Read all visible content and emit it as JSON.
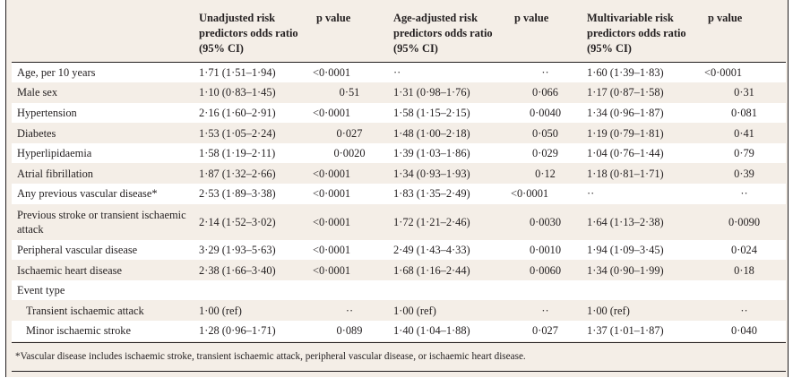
{
  "headers": {
    "col1": "",
    "col2": "Unadjusted risk predictors odds ratio (95% CI)",
    "col3": "p value",
    "col4": "Age-adjusted risk predictors odds ratio (95% CI)",
    "col5": "p value",
    "col6": "Multivariable risk predictors odds ratio (95% CI)",
    "col7": "p value"
  },
  "rows": [
    {
      "label": "Age, per 10 years",
      "u_or": "1·71 (1·51–1·94)",
      "u_p": "<0·0001",
      "a_or": "··",
      "a_p": "··",
      "m_or": "1·60 (1·39–1·83)",
      "m_p": "<0·0001"
    },
    {
      "label": "Male sex",
      "u_or": "1·10 (0·83–1·45)",
      "u_p": "0·51",
      "a_or": "1·31 (0·98–1·76)",
      "a_p": "0·066",
      "m_or": "1·17 (0·87–1·58)",
      "m_p": "0·31"
    },
    {
      "label": "Hypertension",
      "u_or": "2·16 (1·60–2·91)",
      "u_p": "<0·0001",
      "a_or": "1·58 (1·15–2·15)",
      "a_p": "0·0040",
      "m_or": "1·34 (0·96–1·87)",
      "m_p": "0·081"
    },
    {
      "label": "Diabetes",
      "u_or": "1·53 (1·05–2·24)",
      "u_p": "0·027",
      "a_or": "1·48 (1·00–2·18)",
      "a_p": "0·050",
      "m_or": "1·19 (0·79–1·81)",
      "m_p": "0·41"
    },
    {
      "label": "Hyperlipidaemia",
      "u_or": "1·58 (1·19–2·11)",
      "u_p": "0·0020",
      "a_or": "1·39 (1·03–1·86)",
      "a_p": "0·029",
      "m_or": "1·04 (0·76–1·44)",
      "m_p": "0·79"
    },
    {
      "label": "Atrial fibrillation",
      "u_or": "1·87 (1·32–2·66)",
      "u_p": "<0·0001",
      "a_or": "1·34 (0·93–1·93)",
      "a_p": "0·12",
      "m_or": "1·18 (0·81–1·71)",
      "m_p": "0·39"
    },
    {
      "label": "Any previous vascular disease*",
      "u_or": "2·53 (1·89–3·38)",
      "u_p": "<0·0001",
      "a_or": "1·83 (1·35–2·49)",
      "a_p": "<0·0001",
      "m_or": "··",
      "m_p": "··"
    },
    {
      "label": "Previous stroke or transient ischaemic attack",
      "u_or": "2·14 (1·52–3·02)",
      "u_p": "<0·0001",
      "a_or": "1·72 (1·21–2·46)",
      "a_p": "0·0030",
      "m_or": "1·64 (1·13–2·38)",
      "m_p": "0·0090"
    },
    {
      "label": "Peripheral vascular disease",
      "u_or": "3·29 (1·93–5·63)",
      "u_p": "<0·0001",
      "a_or": "2·49 (1·43–4·33)",
      "a_p": "0·0010",
      "m_or": "1·94 (1·09–3·45)",
      "m_p": "0·024"
    },
    {
      "label": "Ischaemic heart disease",
      "u_or": "2·38 (1·66–3·40)",
      "u_p": "<0·0001",
      "a_or": "1·68 (1·16–2·44)",
      "a_p": "0·0060",
      "m_or": "1·34 (0·90–1·99)",
      "m_p": "0·18"
    },
    {
      "label": "Event type",
      "u_or": "",
      "u_p": "",
      "a_or": "",
      "a_p": "",
      "m_or": "",
      "m_p": ""
    },
    {
      "label": "Transient ischaemic attack",
      "u_or": "1·00 (ref)",
      "u_p": "··",
      "a_or": "1·00 (ref)",
      "a_p": "··",
      "m_or": "1·00 (ref)",
      "m_p": "··"
    },
    {
      "label": "Minor ischaemic stroke",
      "u_or": "1·28 (0·96–1·71)",
      "u_p": "0·089",
      "a_or": "1·40 (1·04–1·88)",
      "a_p": "0·027",
      "m_or": "1·37 (1·01–1·87)",
      "m_p": "0·040"
    }
  ],
  "footnote": "*Vascular disease includes ischaemic stroke, transient ischaemic attack, peripheral vascular disease, or ischaemic heart disease."
}
